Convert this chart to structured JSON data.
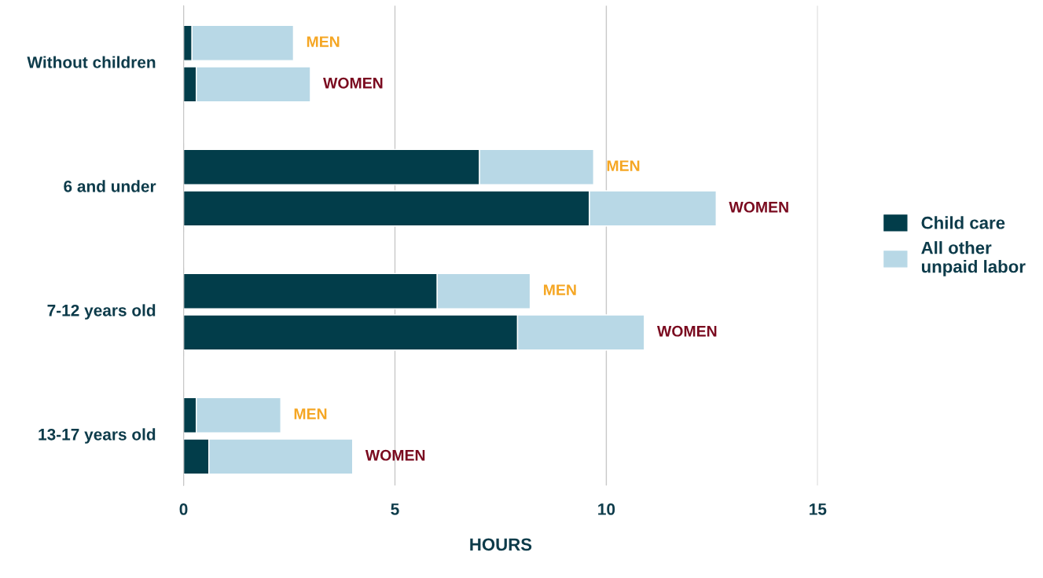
{
  "chart_data": {
    "type": "bar",
    "orientation": "horizontal",
    "stacked": true,
    "categories": [
      "MEN",
      "WOMEN",
      null,
      "MEN",
      "WOMEN",
      null,
      "MEN",
      "WOMEN",
      null,
      "MEN",
      "WOMEN"
    ],
    "series": [
      {
        "name": "Child care",
        "color": "#023d4a",
        "values": [
          0.2,
          0.3,
          null,
          7.0,
          9.6,
          null,
          6.0,
          7.9,
          null,
          0.3,
          0.6
        ]
      },
      {
        "name": "All other\nunpaid labor",
        "color": "#b8d8e6",
        "values": [
          2.4,
          2.7,
          null,
          2.7,
          3.0,
          null,
          2.2,
          3.0,
          null,
          2.0,
          3.4
        ]
      }
    ],
    "annotations": [
      "Without children",
      "6 and under",
      "7-12 years old",
      "13-17 years old"
    ],
    "xlabel": "HOURS",
    "xlim": [
      0,
      15
    ],
    "xticks": [
      0,
      5,
      10,
      15
    ],
    "grid": "x",
    "legend": "right"
  }
}
